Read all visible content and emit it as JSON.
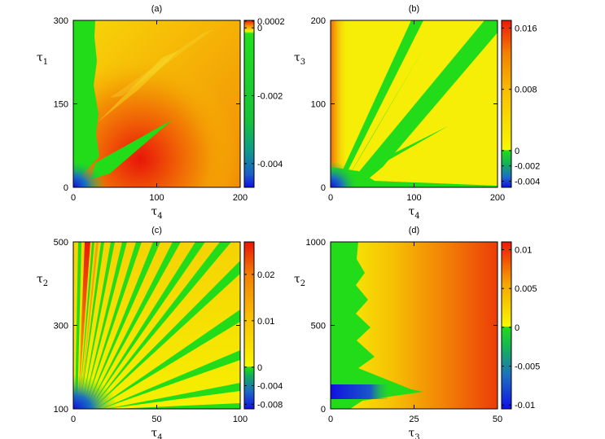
{
  "chart_data": [
    {
      "type": "heatmap",
      "title": "(a)",
      "xlabel": "τ",
      "xlabel_sub": "4",
      "ylabel": "τ",
      "ylabel_sub": "1",
      "xlim": [
        0,
        200
      ],
      "ylim": [
        0,
        300
      ],
      "xticks": [
        "0",
        "100",
        "200"
      ],
      "yticks": [
        "0",
        "150",
        "300"
      ],
      "colorbar": {
        "ticks": [
          "0.0002",
          "0",
          "-0.002",
          "-0.004"
        ],
        "range": [
          -0.0047,
          0.00022
        ]
      },
      "features": [
        {
          "region": "green band at small τ4 (τ4 < ~28) for all τ1",
          "value": -0.0003
        },
        {
          "region": "green tongue along τ1 ≈ 0.5·τ4 from (20,20) to (115,80)",
          "value": -0.0003
        },
        {
          "region": "red maximum centered near τ4 ≈ 80, τ1 ≈ 25",
          "value": 0.0002
        },
        {
          "region": "blue corner near origin",
          "value": -0.0045
        }
      ]
    },
    {
      "type": "heatmap",
      "title": "(b)",
      "xlabel": "τ",
      "xlabel_sub": "4",
      "ylabel": "τ",
      "ylabel_sub": "3",
      "xlim": [
        0,
        200
      ],
      "ylim": [
        0,
        200
      ],
      "xticks": [
        "0",
        "100",
        "200"
      ],
      "yticks": [
        "0",
        "100",
        "200"
      ],
      "colorbar": {
        "ticks": [
          "0.016",
          "0.008",
          "0",
          "-0.002",
          "-0.004"
        ],
        "range": [
          -0.0048,
          0.017
        ]
      },
      "features": [
        {
          "region": "yellow background",
          "value": 0.001
        },
        {
          "region": "green wedges fanning from origin toward (105,200), (200,200), (140,70)",
          "value": -0.0015
        },
        {
          "region": "orange strip along τ4 ≈ 0",
          "value": 0.009
        },
        {
          "region": "blue near origin",
          "value": -0.004
        }
      ]
    },
    {
      "type": "heatmap",
      "title": "(c)",
      "xlabel": "τ",
      "xlabel_sub": "4",
      "ylabel": "τ",
      "ylabel_sub": "2",
      "xlim": [
        0,
        100
      ],
      "ylim": [
        100,
        500
      ],
      "xticks": [
        "0",
        "50",
        "100"
      ],
      "yticks": [
        "100",
        "300",
        "500"
      ],
      "colorbar": {
        "ticks": [
          "0.02",
          "0.01",
          "0",
          "-0.004",
          "-0.008"
        ],
        "range": [
          -0.009,
          0.027
        ]
      },
      "features": [
        {
          "region": "many alternating green and yellow rays emanating from (0,100)",
          "value": 0
        },
        {
          "region": "red rays at small τ4 near top",
          "value": 0.025
        },
        {
          "region": "blue near (0,100)",
          "value": -0.008
        }
      ]
    },
    {
      "type": "heatmap",
      "title": "(d)",
      "xlabel": "τ",
      "xlabel_sub": "3",
      "ylabel": "τ",
      "ylabel_sub": "2",
      "xlim": [
        0,
        50
      ],
      "ylim": [
        0,
        1000
      ],
      "xticks": [
        "0",
        "25",
        "50"
      ],
      "yticks": [
        "0",
        "500",
        "1000"
      ],
      "colorbar": {
        "ticks": [
          "0.01",
          "0.005",
          "0",
          "-0.005",
          "-0.01"
        ],
        "range": [
          -0.0105,
          0.011
        ]
      },
      "features": [
        {
          "region": "green band at small τ3 with scalloped right edge",
          "value": -0.002
        },
        {
          "region": "blue stripe near τ2 ≈ 90 for τ3 < 15",
          "value": -0.01
        },
        {
          "region": "yellow-orange-red gradient increasing with τ3",
          "value": 0.009
        }
      ]
    }
  ]
}
